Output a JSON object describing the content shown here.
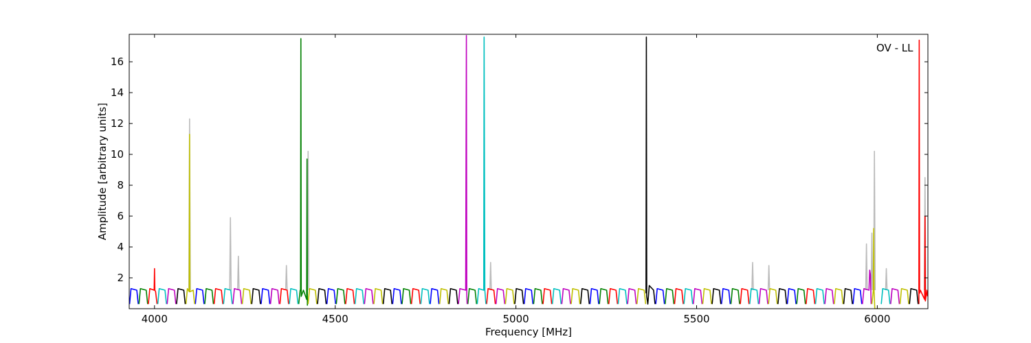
{
  "chart_data": {
    "type": "line",
    "xlabel": "Frequency [MHz]",
    "ylabel": "Amplitude [arbitrary units]",
    "annotation": "OV - LL",
    "xlim": [
      3930,
      6140
    ],
    "ylim": [
      0,
      17.78
    ],
    "xticks": [
      4000,
      4500,
      5000,
      5500,
      6000
    ],
    "yticks": [
      2,
      4,
      6,
      8,
      10,
      12,
      14,
      16
    ],
    "grid": false,
    "series": [
      {
        "color": "#bbbbbb",
        "x": [
          4095,
          4097,
          4099,
          null,
          4208,
          4210,
          4212,
          null,
          4230,
          4232,
          4234,
          null,
          4363,
          4365,
          4367,
          null,
          4423,
          4425,
          4427,
          null,
          4928,
          4930,
          4932,
          null,
          5653,
          5655,
          5657,
          null,
          5698,
          5700,
          5702,
          null,
          5968,
          5970,
          5972,
          null,
          5983,
          5985,
          5987,
          null,
          5990,
          5992,
          5994,
          null,
          6023,
          6025,
          6027,
          null,
          6130,
          6132,
          6134
        ],
        "values": [
          1.2,
          12.3,
          1.2,
          null,
          1.2,
          5.9,
          1.2,
          null,
          1.2,
          3.4,
          1.2,
          null,
          1.2,
          2.8,
          1.2,
          null,
          1.2,
          10.2,
          1.2,
          null,
          1.2,
          3.0,
          1.2,
          null,
          1.2,
          3.0,
          1.2,
          null,
          1.2,
          2.8,
          1.2,
          null,
          1.2,
          4.2,
          1.2,
          null,
          1.2,
          4.9,
          1.2,
          null,
          1.2,
          10.2,
          1.2,
          null,
          1.2,
          2.6,
          1.2,
          null,
          1.2,
          8.5,
          1.2
        ]
      },
      {
        "color": "#0000ff",
        "x": [
          3931,
          3935,
          3951,
          3955,
          null,
          4113,
          4117,
          4133,
          4137,
          null,
          4295,
          4299,
          4315,
          4319,
          null,
          4477,
          4481,
          4497,
          4501,
          null,
          4659,
          4663,
          4679,
          4683,
          null,
          4763,
          4767,
          4783,
          4787,
          null,
          5023,
          5027,
          5043,
          5047,
          null,
          5205,
          5209,
          5225,
          5229,
          null,
          5387,
          5391,
          5407,
          5411,
          null,
          5569,
          5573,
          5589,
          5593,
          null,
          5751,
          5755,
          5771,
          5775,
          null,
          5933,
          5937,
          5953,
          5957
        ],
        "values": [
          0.3,
          1.3,
          1.2,
          0.3,
          null,
          0.3,
          1.3,
          1.2,
          0.3,
          null,
          0.3,
          1.3,
          1.2,
          0.3,
          null,
          0.3,
          1.3,
          1.2,
          0.3,
          null,
          0.3,
          1.3,
          1.2,
          0.3,
          null,
          0.3,
          1.3,
          1.2,
          0.3,
          null,
          0.3,
          1.3,
          1.2,
          0.3,
          null,
          0.3,
          1.3,
          1.2,
          0.3,
          null,
          0.3,
          1.3,
          1.2,
          0.3,
          null,
          0.3,
          1.3,
          1.2,
          0.3,
          null,
          0.3,
          1.3,
          1.2,
          0.3,
          null,
          0.3,
          1.3,
          1.2,
          0.3
        ]
      },
      {
        "color": "#008000",
        "x": [
          3957,
          3961,
          3977,
          3981,
          null,
          4139,
          4143,
          4159,
          4163,
          null,
          4399,
          4403,
          4404,
          4405,
          4406,
          4412,
          4421,
          4422,
          4423,
          null,
          4503,
          4507,
          4523,
          4527,
          null,
          4685,
          4689,
          4705,
          4709,
          null,
          4867,
          4871,
          4887,
          4891,
          null,
          5049,
          5053,
          5069,
          5073,
          null,
          5231,
          5235,
          5251,
          5255,
          null,
          5413,
          5417,
          5433,
          5437,
          null,
          5595,
          5599,
          5615,
          5619,
          null,
          5777,
          5781,
          5797,
          5801
        ],
        "values": [
          0.3,
          1.3,
          1.2,
          0.3,
          null,
          0.3,
          1.3,
          1.2,
          0.3,
          null,
          0.3,
          1.2,
          1.2,
          17.5,
          0.8,
          1.2,
          0.6,
          9.7,
          0.2,
          null,
          0.3,
          1.3,
          1.2,
          0.3,
          null,
          0.3,
          1.3,
          1.2,
          0.3,
          null,
          0.3,
          1.3,
          1.2,
          0.3,
          null,
          0.3,
          1.3,
          1.2,
          0.3,
          null,
          0.3,
          1.3,
          1.2,
          0.3,
          null,
          0.3,
          1.3,
          1.2,
          0.3,
          null,
          0.3,
          1.3,
          1.2,
          0.3,
          null,
          0.3,
          1.3,
          1.2,
          0.3
        ]
      },
      {
        "color": "#ff0000",
        "x": [
          3983,
          3987,
          3999,
          4000,
          4001,
          4003,
          4007,
          null,
          4165,
          4169,
          4185,
          4189,
          null,
          4347,
          4351,
          4367,
          4371,
          null,
          4529,
          4533,
          4549,
          4553,
          null,
          4711,
          4715,
          4731,
          4735,
          null,
          4919,
          4923,
          4939,
          4943,
          null,
          5075,
          5079,
          5095,
          5099,
          null,
          5257,
          5261,
          5277,
          5281,
          null,
          5439,
          5443,
          5459,
          5463,
          null,
          5621,
          5625,
          5641,
          5645,
          null,
          5803,
          5807,
          5823,
          5827,
          null,
          6115,
          6116,
          6117,
          6119,
          6131,
          6132,
          6133,
          6137,
          6139
        ],
        "values": [
          0.3,
          1.3,
          1.2,
          2.6,
          1.2,
          1.1,
          0.3,
          null,
          0.3,
          1.3,
          1.2,
          0.3,
          null,
          0.3,
          1.3,
          1.2,
          0.3,
          null,
          0.3,
          1.3,
          1.2,
          0.3,
          null,
          0.3,
          1.3,
          1.2,
          0.3,
          null,
          0.3,
          1.3,
          1.2,
          0.3,
          null,
          0.3,
          1.3,
          1.2,
          0.3,
          null,
          0.3,
          1.3,
          1.2,
          0.3,
          null,
          0.3,
          1.3,
          1.2,
          0.3,
          null,
          0.3,
          1.3,
          1.2,
          0.3,
          null,
          0.3,
          1.3,
          1.2,
          0.3,
          null,
          0.3,
          17.4,
          1.0,
          1.2,
          0.6,
          6.0,
          0.5,
          1.2,
          0.8
        ]
      },
      {
        "color": "#00bfbf",
        "x": [
          4009,
          4013,
          4029,
          4033,
          null,
          4191,
          4195,
          4211,
          4215,
          null,
          4373,
          4377,
          4393,
          4397,
          null,
          4555,
          4559,
          4575,
          4579,
          null,
          4737,
          4741,
          4757,
          4761,
          null,
          4893,
          4897,
          4911,
          4912,
          4914,
          4917,
          null,
          5101,
          5105,
          5121,
          5125,
          null,
          5283,
          5287,
          5303,
          5307,
          null,
          5465,
          5469,
          5485,
          5489,
          null,
          5647,
          5651,
          5667,
          5671,
          null,
          5829,
          5833,
          5849,
          5853,
          null,
          6011,
          6015,
          6031,
          6035
        ],
        "values": [
          0.3,
          1.3,
          1.2,
          0.3,
          null,
          0.3,
          1.3,
          1.2,
          0.3,
          null,
          0.3,
          1.3,
          1.2,
          0.3,
          null,
          0.3,
          1.3,
          1.2,
          0.3,
          null,
          0.3,
          1.3,
          1.2,
          0.3,
          null,
          0.3,
          1.3,
          1.2,
          17.6,
          1.2,
          0.3,
          null,
          0.3,
          1.3,
          1.2,
          0.3,
          null,
          0.3,
          1.3,
          1.2,
          0.3,
          null,
          0.3,
          1.3,
          1.2,
          0.3,
          null,
          0.3,
          1.3,
          1.2,
          0.3,
          null,
          0.3,
          1.3,
          1.2,
          0.3,
          null,
          0.3,
          1.3,
          1.2,
          0.3
        ]
      },
      {
        "color": "#bf00bf",
        "x": [
          4035,
          4039,
          4055,
          4059,
          null,
          4217,
          4221,
          4237,
          4241,
          null,
          4321,
          4325,
          4341,
          4345,
          null,
          4581,
          4585,
          4601,
          4605,
          null,
          4841,
          4845,
          4861,
          4863,
          4864,
          4865,
          null,
          4945,
          4949,
          4965,
          4969,
          null,
          5127,
          5131,
          5147,
          5151,
          null,
          5309,
          5313,
          5329,
          5333,
          null,
          5491,
          5495,
          5511,
          5515,
          null,
          5673,
          5677,
          5693,
          5697,
          null,
          5855,
          5859,
          5875,
          5879,
          null,
          5959,
          5963,
          5977,
          5979,
          5981,
          5983,
          null,
          6037,
          6041,
          6057,
          6061
        ],
        "values": [
          0.3,
          1.3,
          1.2,
          0.3,
          null,
          0.3,
          1.3,
          1.2,
          0.3,
          null,
          0.3,
          1.3,
          1.2,
          0.3,
          null,
          0.3,
          1.3,
          1.2,
          0.3,
          null,
          0.3,
          1.3,
          1.2,
          17.7,
          1.0,
          0.3,
          null,
          0.3,
          1.3,
          1.2,
          0.3,
          null,
          0.3,
          1.3,
          1.2,
          0.3,
          null,
          0.3,
          1.3,
          1.2,
          0.3,
          null,
          0.3,
          1.3,
          1.2,
          0.3,
          null,
          0.3,
          1.3,
          1.2,
          0.3,
          null,
          0.3,
          1.3,
          1.2,
          0.3,
          null,
          0.3,
          1.3,
          1.2,
          2.5,
          2.2,
          0.3,
          null,
          0.3,
          1.3,
          1.2,
          0.3
        ]
      },
      {
        "color": "#bfbf00",
        "x": [
          4087,
          4091,
          4096,
          4097,
          4098,
          4107,
          4111,
          null,
          4243,
          4247,
          4263,
          4267,
          null,
          4425,
          4429,
          4445,
          4449,
          null,
          4607,
          4611,
          4627,
          4631,
          null,
          4789,
          4793,
          4809,
          4813,
          null,
          4971,
          4975,
          4991,
          4995,
          null,
          5153,
          5157,
          5173,
          5177,
          null,
          5335,
          5339,
          5355,
          5359,
          null,
          5517,
          5521,
          5537,
          5541,
          null,
          5699,
          5703,
          5719,
          5723,
          null,
          5881,
          5885,
          5901,
          5905,
          null,
          5985,
          5989,
          5990,
          5991,
          5993,
          6009,
          null,
          6063,
          6067,
          6083,
          6087
        ],
        "values": [
          0.3,
          1.3,
          1.1,
          11.3,
          1.1,
          1.2,
          0.3,
          null,
          0.3,
          1.3,
          1.2,
          0.3,
          null,
          0.3,
          1.3,
          1.2,
          0.3,
          null,
          0.3,
          1.3,
          1.2,
          0.3,
          null,
          0.3,
          1.3,
          1.2,
          0.3,
          null,
          0.3,
          1.3,
          1.2,
          0.3,
          null,
          0.3,
          1.3,
          1.2,
          0.3,
          null,
          0.3,
          1.3,
          1.2,
          0.3,
          null,
          0.3,
          1.3,
          1.2,
          0.3,
          null,
          0.3,
          1.3,
          1.2,
          0.3,
          null,
          0.3,
          1.3,
          1.2,
          0.3,
          null,
          0.3,
          1.2,
          5.2,
          1.2,
          0.0,
          0.0,
          null,
          0.3,
          1.3,
          1.2,
          0.3
        ]
      },
      {
        "color": "#000000",
        "x": [
          4061,
          4065,
          4081,
          4085,
          null,
          4269,
          4273,
          4289,
          4293,
          null,
          4451,
          4455,
          4471,
          4475,
          null,
          4633,
          4637,
          4653,
          4657,
          null,
          4815,
          4819,
          4835,
          4839,
          null,
          4997,
          5001,
          5017,
          5021,
          null,
          5179,
          5183,
          5199,
          5203,
          null,
          5360,
          5361,
          5362,
          5365,
          5369,
          5381,
          5385,
          null,
          5543,
          5547,
          5563,
          5567,
          null,
          5725,
          5729,
          5745,
          5749,
          null,
          5907,
          5911,
          5927,
          5931,
          null,
          6089,
          6093,
          6109,
          6113
        ],
        "values": [
          0.3,
          1.3,
          1.2,
          0.3,
          null,
          0.3,
          1.3,
          1.2,
          0.3,
          null,
          0.3,
          1.3,
          1.2,
          0.3,
          null,
          0.3,
          1.3,
          1.2,
          0.3,
          null,
          0.3,
          1.3,
          1.2,
          0.3,
          null,
          0.3,
          1.3,
          1.2,
          0.3,
          null,
          0.3,
          1.3,
          1.2,
          0.3,
          null,
          1.0,
          17.6,
          0.8,
          0.3,
          1.5,
          1.2,
          0.3,
          null,
          0.3,
          1.3,
          1.2,
          0.3,
          null,
          0.3,
          1.3,
          1.2,
          0.3,
          null,
          0.3,
          1.3,
          1.2,
          0.3,
          null,
          0.3,
          1.3,
          1.2,
          0.3
        ]
      }
    ]
  }
}
